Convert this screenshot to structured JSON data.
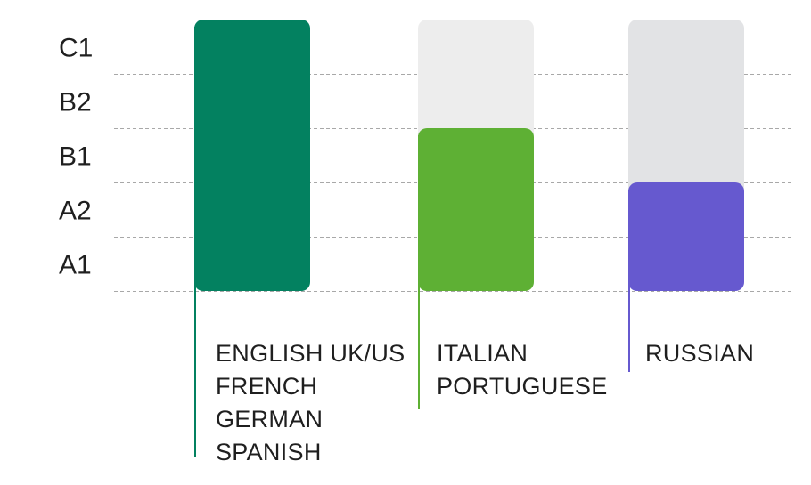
{
  "chart_data": {
    "type": "bar",
    "levels": [
      "A1",
      "A2",
      "B1",
      "B2",
      "C1"
    ],
    "bars": [
      {
        "languages": [
          "ENGLISH UK/US",
          "FRENCH",
          "GERMAN",
          "SPANISH"
        ],
        "level": "C1",
        "value": 5,
        "color": "#038160",
        "track_color": "#ececec"
      },
      {
        "languages": [
          "ITALIAN",
          "PORTUGUESE"
        ],
        "level": "B1",
        "value": 3,
        "color": "#5eb034",
        "track_color": "#ededed"
      },
      {
        "languages": [
          "RUSSIAN"
        ],
        "level": "A2",
        "value": 2,
        "color": "#6659cf",
        "track_color": "#e2e3e5"
      }
    ],
    "ylim": [
      0,
      5
    ],
    "grid": true
  }
}
